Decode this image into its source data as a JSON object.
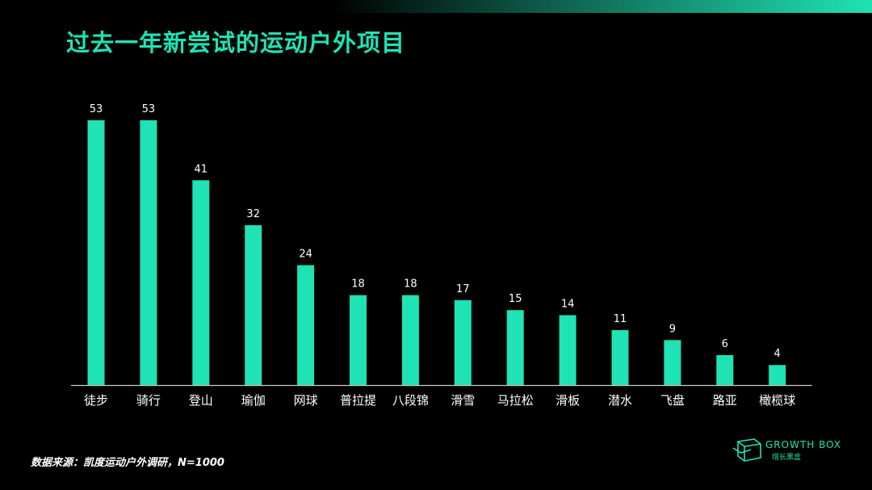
{
  "header": {
    "title": "过去一年新尝试的运动户外项目"
  },
  "footer": {
    "source": "数据来源：凯度运动户外调研，N=1000"
  },
  "brand": {
    "name": "GROWTH BOX",
    "sub": "增长黑盒",
    "icon": "growth-box-logo-icon"
  },
  "colors": {
    "background": "#000000",
    "accent": "#1fe3b4",
    "text": "#ffffff",
    "axis": "#cccccc"
  },
  "chart_data": {
    "type": "bar",
    "title": "过去一年新尝试的运动户外项目",
    "xlabel": "",
    "ylabel": "",
    "categories": [
      "徒步",
      "骑行",
      "登山",
      "瑜伽",
      "网球",
      "普拉提",
      "八段锦",
      "滑雪",
      "马拉松",
      "滑板",
      "潜水",
      "飞盘",
      "路亚",
      "橄榄球"
    ],
    "values": [
      53,
      53,
      41,
      32,
      24,
      18,
      18,
      17,
      15,
      14,
      11,
      9,
      6,
      4
    ],
    "ylim": [
      0,
      53
    ],
    "grid": false,
    "legend": "none",
    "data_labels": true
  }
}
